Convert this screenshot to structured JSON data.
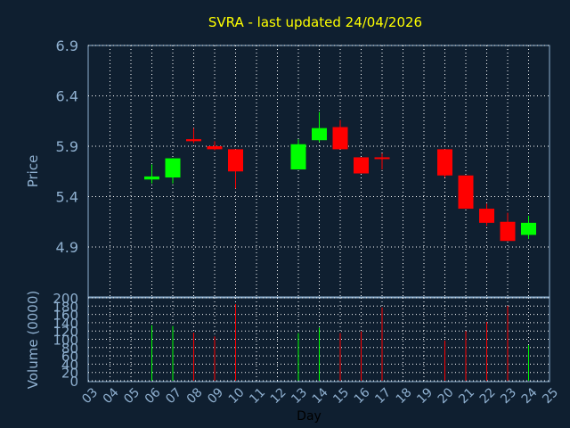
{
  "chart_data": [
    {
      "type": "candlestick",
      "title": "SVRA - last updated 24/04/2026",
      "ylabel": "Price",
      "ylim": [
        4.9,
        6.9
      ],
      "yticks": [
        "6.9",
        "6.4",
        "5.9",
        "5.4",
        "4.9"
      ],
      "grid": true,
      "colors": {
        "up": "#00ff00",
        "down": "#ff0000",
        "grid": "#ffffff",
        "axis": "#8fb0d0",
        "background": "#0f1f30",
        "plot": "#0f1f30"
      },
      "candles": [
        {
          "day": "06",
          "open": 5.57,
          "high": 5.72,
          "low": 5.53,
          "close": 5.6
        },
        {
          "day": "07",
          "open": 5.59,
          "high": 5.78,
          "low": 5.53,
          "close": 5.78
        },
        {
          "day": "08",
          "open": 5.97,
          "high": 6.08,
          "low": 5.93,
          "close": 5.95
        },
        {
          "day": "09",
          "open": 5.9,
          "high": 5.95,
          "low": 5.86,
          "close": 5.87
        },
        {
          "day": "10",
          "open": 5.87,
          "high": 5.87,
          "low": 5.48,
          "close": 5.65
        },
        {
          "day": "13",
          "open": 5.67,
          "high": 5.97,
          "low": 5.67,
          "close": 5.92
        },
        {
          "day": "14",
          "open": 5.96,
          "high": 6.24,
          "low": 5.94,
          "close": 6.08
        },
        {
          "day": "15",
          "open": 6.09,
          "high": 6.16,
          "low": 5.87,
          "close": 5.87
        },
        {
          "day": "16",
          "open": 5.79,
          "high": 5.79,
          "low": 5.63,
          "close": 5.63
        },
        {
          "day": "17",
          "open": 5.79,
          "high": 5.83,
          "low": 5.67,
          "close": 5.78
        },
        {
          "day": "20",
          "open": 5.87,
          "high": 5.87,
          "low": 5.59,
          "close": 5.61
        },
        {
          "day": "21",
          "open": 5.61,
          "high": 5.61,
          "low": 5.28,
          "close": 5.28
        },
        {
          "day": "22",
          "open": 5.28,
          "high": 5.33,
          "low": 5.11,
          "close": 5.14
        },
        {
          "day": "23",
          "open": 5.15,
          "high": 5.24,
          "low": 4.96,
          "close": 4.96
        },
        {
          "day": "24",
          "open": 5.02,
          "high": 5.21,
          "low": 4.98,
          "close": 5.14
        }
      ]
    },
    {
      "type": "bar",
      "ylabel": "Volume (0000)",
      "xlabel": "Day",
      "ylim": [
        0,
        200
      ],
      "yticks": [
        "200",
        "180",
        "160",
        "140",
        "120",
        "100",
        "80",
        "60",
        "40",
        "20",
        "0"
      ],
      "categories": [
        "03",
        "04",
        "05",
        "06",
        "07",
        "08",
        "09",
        "10",
        "11",
        "12",
        "13",
        "14",
        "15",
        "16",
        "17",
        "18",
        "19",
        "20",
        "21",
        "22",
        "23",
        "24",
        "25"
      ],
      "values": [
        null,
        null,
        null,
        134,
        132,
        116,
        107,
        185,
        null,
        null,
        115,
        128,
        115,
        119,
        177,
        null,
        null,
        97,
        120,
        142,
        181,
        86,
        null
      ],
      "bar_colors": [
        "",
        "",
        "",
        "up",
        "up",
        "down",
        "down",
        "down",
        "",
        "",
        "up",
        "up",
        "down",
        "down",
        "down",
        "",
        "",
        "down",
        "down",
        "down",
        "down",
        "up",
        ""
      ]
    }
  ]
}
